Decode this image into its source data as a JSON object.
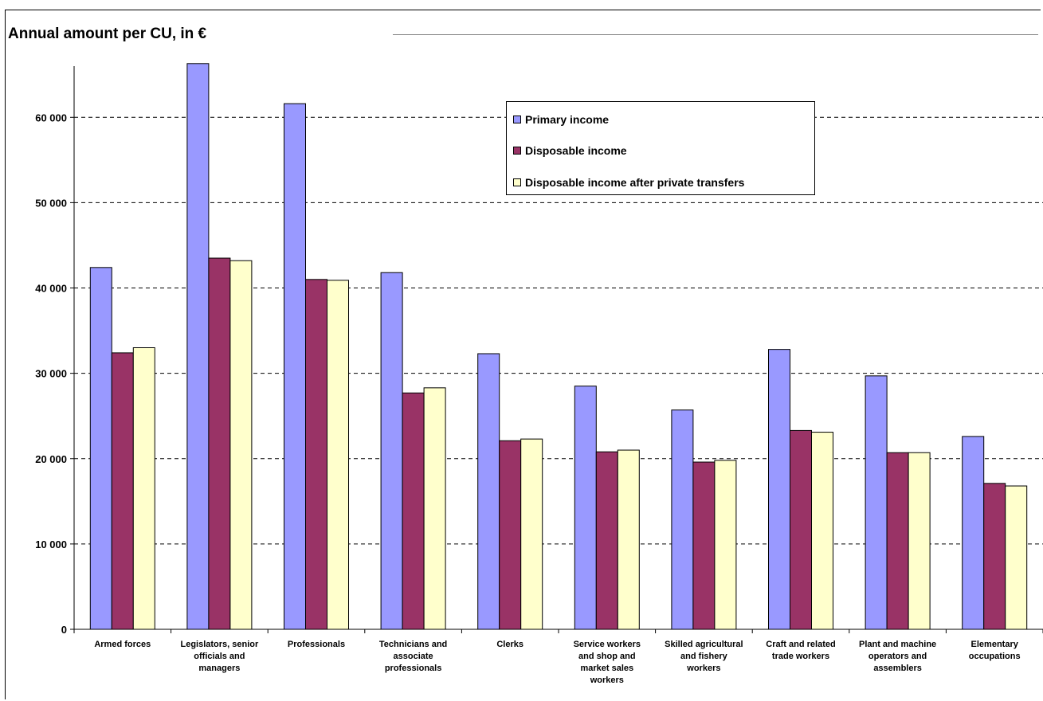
{
  "chart_data": {
    "type": "bar",
    "title": "Annual amount per CU, in €",
    "ylim": [
      0,
      66000
    ],
    "yticks": [
      0,
      10000,
      20000,
      30000,
      40000,
      50000,
      60000
    ],
    "ytick_labels": [
      "0",
      "10 000",
      "20 000",
      "30 000",
      "40 000",
      "50 000",
      "60 000"
    ],
    "grid": true,
    "legend_position": "top-center",
    "categories": [
      [
        "Armed forces"
      ],
      [
        "Legislators, senior",
        "officials and",
        "managers"
      ],
      [
        "Professionals"
      ],
      [
        "Technicians and",
        "associate",
        "professionals"
      ],
      [
        "Clerks"
      ],
      [
        "Service workers",
        "and shop and",
        "market sales",
        "workers"
      ],
      [
        "Skilled agricultural",
        "and fishery",
        "workers"
      ],
      [
        "Craft and related",
        "trade workers"
      ],
      [
        "Plant and machine",
        "operators and",
        "assemblers"
      ],
      [
        "Elementary",
        "occupations"
      ]
    ],
    "series": [
      {
        "name": "Primary income",
        "color": "#9999ff",
        "values": [
          42400,
          66300,
          61600,
          41800,
          32300,
          28500,
          25700,
          32800,
          29700,
          22600
        ]
      },
      {
        "name": "Disposable income",
        "color": "#993366",
        "values": [
          32400,
          43500,
          41000,
          27700,
          22100,
          20800,
          19600,
          23300,
          20700,
          17100
        ]
      },
      {
        "name": "Disposable income after private transfers",
        "color": "#ffffcc",
        "values": [
          33000,
          43200,
          40900,
          28300,
          22300,
          21000,
          19800,
          23100,
          20700,
          16800
        ]
      }
    ]
  }
}
